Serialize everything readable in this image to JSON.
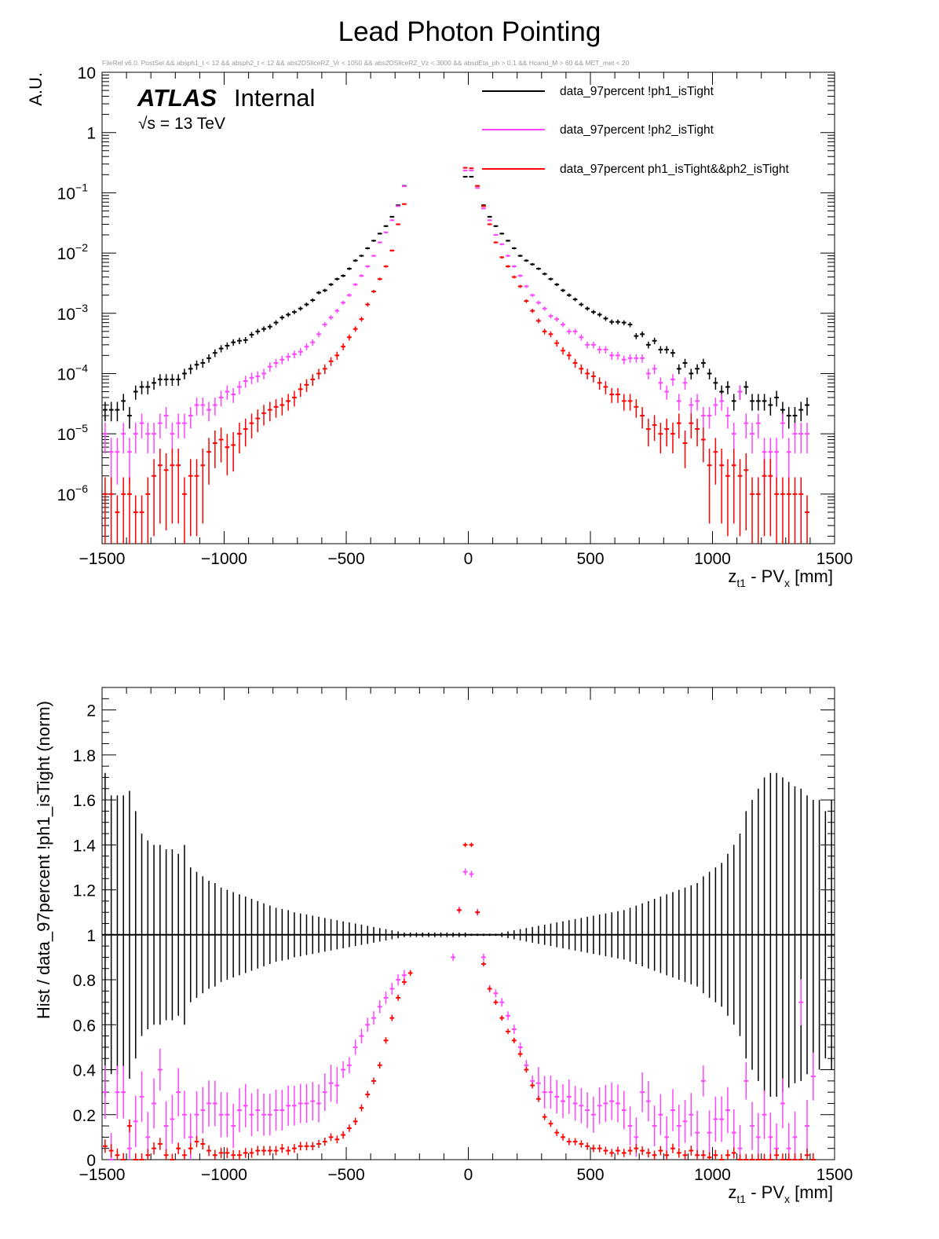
{
  "title": "Lead Photon Pointing",
  "selection_text": "FileRel v6.0. PostSel &&  absph1_t < 12 && absph2_t < 12 && abs2DSliceRZ_Vr < 1050 && abs2DSliceRZ_Vz < 3000 && absdEta_ph > 0.1 && Hcand_M > 60 && MET_met < 20",
  "atlas_label": "ATLAS",
  "atlas_status": "Internal",
  "energy_label": "√s = 13 TeV",
  "colors": {
    "series0": "#000000",
    "series1": "#ff44ff",
    "series2": "#ff0000"
  },
  "chart_data": [
    {
      "type": "scatter",
      "name": "top-panel",
      "title": "Lead Photon Pointing",
      "xlabel": "z_t1 - PV_x [mm]",
      "xlabel_main": "z",
      "xlabel_sub1": "t1",
      "xlabel_mid": " - PV",
      "xlabel_sub2": "x",
      "xlabel_tail": " [mm]",
      "ylabel": "A.U.",
      "yscale": "log",
      "xlim": [
        -1500,
        1500
      ],
      "ylim": [
        1.5e-07,
        10
      ],
      "grid": false,
      "legend": "top-right",
      "xticks": [
        {
          "v": -1500,
          "label": "−1500"
        },
        {
          "v": -1000,
          "label": "−1000"
        },
        {
          "v": -500,
          "label": "−500"
        },
        {
          "v": 0,
          "label": "0"
        },
        {
          "v": 500,
          "label": "500"
        },
        {
          "v": 1000,
          "label": "1000"
        },
        {
          "v": 1500,
          "label": "1500"
        }
      ],
      "yticks": [
        {
          "v": 10,
          "base": "10",
          "exp": ""
        },
        {
          "v": 1,
          "base": "1",
          "exp": ""
        },
        {
          "v": 0.1,
          "base": "10",
          "exp": "−1"
        },
        {
          "v": 0.01,
          "base": "10",
          "exp": "−2"
        },
        {
          "v": 0.001,
          "base": "10",
          "exp": "−3"
        },
        {
          "v": 0.0001,
          "base": "10",
          "exp": "−4"
        },
        {
          "v": 1e-05,
          "base": "10",
          "exp": "−5"
        },
        {
          "v": 1e-06,
          "base": "10",
          "exp": "−6"
        }
      ],
      "bin_edges": {
        "min": -1500,
        "width": 25,
        "count": 120
      },
      "series": [
        {
          "name": "data_97percent !ph1_isTight",
          "color": "#000000",
          "edge_values": [
            2.5e-05,
            2.5e-05,
            2.5e-05,
            3.5e-05,
            2e-05,
            5e-05,
            6e-05,
            6e-05,
            7e-05,
            8e-05,
            8e-05,
            8e-05,
            8e-05,
            0.0001,
            0.00012,
            0.00014,
            0.00015,
            0.00018,
            0.00022,
            0.00026,
            0.00029,
            0.00033,
            0.00035,
            0.00036,
            0.00044,
            0.0005,
            0.00055,
            0.0006,
            0.0007,
            0.00085,
            0.00095,
            0.00105,
            0.0012,
            0.0014,
            0.00165,
            0.0022,
            0.0024,
            0.003,
            0.0037,
            0.0042,
            0.0055,
            0.0075,
            0.009,
            0.012,
            0.016,
            0.021,
            0.028,
            0.04,
            0.062,
            0.13
          ],
          "center": [
            0.185,
            0.185
          ],
          "tail_pos": [
            0.13,
            0.062,
            0.04,
            0.028,
            0.021,
            0.016,
            0.012,
            0.009,
            0.0075,
            0.0065,
            0.0055,
            0.0045,
            0.0037,
            0.003,
            0.0024,
            0.002,
            0.0017,
            0.0014,
            0.0012,
            0.00105,
            0.00095,
            0.00082,
            0.00072,
            0.00072,
            0.0007,
            0.00065,
            0.00042,
            0.00045,
            0.0003,
            0.00035,
            0.00025,
            0.00025,
            0.00022,
            0.00012,
            0.00015,
            0.0001,
            0.00012,
            0.00015,
            0.0001,
            7e-05,
            5e-05,
            6e-05,
            3.5e-05,
            5e-05,
            6e-05,
            3.5e-05,
            3.5e-05,
            3.5e-05,
            3e-05,
            4e-05,
            2.5e-05,
            2e-05,
            2e-05,
            2.5e-05,
            3e-05
          ]
        },
        {
          "name": "data_97percent !ph2_isTight",
          "color": "#ff44ff",
          "edge_values": [
            1e-05,
            5e-06,
            5e-06,
            1e-05,
            5e-06,
            1e-05,
            1.5e-05,
            1e-05,
            1e-05,
            1.5e-05,
            2e-05,
            1e-05,
            1.5e-05,
            1.5e-05,
            2e-05,
            3e-05,
            3e-05,
            2.5e-05,
            3e-05,
            4e-05,
            5e-05,
            4.5e-05,
            6e-05,
            7.5e-05,
            8.5e-05,
            9e-05,
            0.0001,
            0.00013,
            0.00015,
            0.00017,
            0.00019,
            0.00021,
            0.00023,
            0.00028,
            0.00033,
            0.00045,
            0.00065,
            0.00085,
            0.0011,
            0.0015,
            0.002,
            0.003,
            0.0042,
            0.006,
            0.009,
            0.015,
            0.022,
            0.035,
            0.06,
            0.128
          ],
          "center": [
            0.235,
            0.235
          ],
          "tail_pos": [
            0.12,
            0.055,
            0.035,
            0.02,
            0.014,
            0.009,
            0.006,
            0.0042,
            0.0028,
            0.002,
            0.0015,
            0.0012,
            0.0009,
            0.0008,
            0.00065,
            0.0005,
            0.0005,
            0.0004,
            0.0003,
            0.0003,
            0.00025,
            0.00025,
            0.0002,
            0.0002,
            0.00017,
            0.00018,
            0.00018,
            0.00018,
            0.0001,
            0.00012,
            7e-05,
            5e-05,
            8e-05,
            3.5e-05,
            7e-05,
            3e-05,
            3.5e-05,
            2e-05,
            2e-05,
            3e-05,
            3.5e-05,
            2e-05,
            1e-05,
            5e-05,
            1.5e-05,
            1e-05,
            1.5e-05,
            5e-06,
            5e-06,
            5e-06,
            1.5e-05,
            5e-06,
            1e-05,
            1e-05,
            1e-05
          ]
        },
        {
          "name": "data_97percent ph1_isTight&&ph2_isTight",
          "color": "#ff0000",
          "edge_values": [
            1e-06,
            1e-06,
            5e-07,
            1e-06,
            1e-06,
            5e-07,
            5e-07,
            1e-06,
            2e-06,
            3e-06,
            2.5e-06,
            3e-06,
            3e-06,
            1e-06,
            2e-06,
            2e-06,
            3e-06,
            5e-06,
            7e-06,
            8e-06,
            6e-06,
            6.5e-06,
            1e-05,
            1.2e-05,
            1.5e-05,
            1.8e-05,
            2.2e-05,
            2.5e-05,
            2.8e-05,
            3e-05,
            3.5e-05,
            4e-05,
            5.5e-05,
            6.5e-05,
            8e-05,
            0.0001,
            0.00012,
            0.00016,
            0.0002,
            0.00028,
            0.0004,
            0.00055,
            0.0008,
            0.0014,
            0.0023,
            0.0037,
            0.006,
            0.011,
            0.03,
            0.065
          ],
          "center": [
            0.26,
            0.255
          ],
          "tail_pos": [
            0.13,
            0.06,
            0.03,
            0.015,
            0.0085,
            0.006,
            0.004,
            0.0028,
            0.0016,
            0.0011,
            0.00075,
            0.0005,
            0.00045,
            0.00032,
            0.00024,
            0.0002,
            0.00015,
            0.00012,
            0.0001,
            9e-05,
            7e-05,
            6e-05,
            4.5e-05,
            4.5e-05,
            3.5e-05,
            3.5e-05,
            2.8e-05,
            2e-05,
            1.2e-05,
            1.4e-05,
            1e-05,
            1.2e-05,
            1e-05,
            1.5e-05,
            7e-06,
            1.5e-05,
            1.2e-05,
            8e-06,
            3e-06,
            5e-06,
            3e-06,
            2e-06,
            3e-06,
            2e-06,
            2.5e-06,
            1e-06,
            1e-06,
            2e-06,
            2e-06,
            1e-06,
            1e-06,
            1e-06,
            1e-06,
            1e-06,
            5e-07
          ]
        }
      ]
    },
    {
      "type": "scatter",
      "name": "ratio-panel",
      "xlabel": "z_t1 - PV_x [mm]",
      "xlabel_main": "z",
      "xlabel_sub1": "t1",
      "xlabel_mid": " - PV",
      "xlabel_sub2": "x",
      "xlabel_tail": " [mm]",
      "ylabel": "Hist / data_97percent !ph1_isTight (norm)",
      "xlim": [
        -1500,
        1500
      ],
      "ylim": [
        0,
        2.1
      ],
      "grid": false,
      "xticks": [
        {
          "v": -1500,
          "label": "−1500"
        },
        {
          "v": -1000,
          "label": "−1000"
        },
        {
          "v": -500,
          "label": "−500"
        },
        {
          "v": 0,
          "label": "0"
        },
        {
          "v": 500,
          "label": "500"
        },
        {
          "v": 1000,
          "label": "1000"
        },
        {
          "v": 1500,
          "label": "1500"
        }
      ],
      "yticks": [
        {
          "v": 0,
          "label": "0"
        },
        {
          "v": 0.2,
          "label": "0.2"
        },
        {
          "v": 0.4,
          "label": "0.4"
        },
        {
          "v": 0.6,
          "label": "0.6"
        },
        {
          "v": 0.8,
          "label": "0.8"
        },
        {
          "v": 1,
          "label": "1"
        },
        {
          "v": 1.2,
          "label": "1.2"
        },
        {
          "v": 1.4,
          "label": "1.4"
        },
        {
          "v": 1.6,
          "label": "1.6"
        },
        {
          "v": 1.8,
          "label": "1.8"
        },
        {
          "v": 2,
          "label": "2"
        }
      ],
      "bin_edges": {
        "min": -1500,
        "width": 25,
        "count": 120
      },
      "reference_line": 1,
      "series": [
        {
          "name": "data_97percent !ph1_isTight",
          "color": "#000000",
          "value": 1,
          "error_edge": [
            0.72,
            0.62,
            0.62,
            0.62,
            0.64,
            0.55,
            0.45,
            0.42,
            0.4,
            0.4,
            0.38,
            0.38,
            0.36,
            0.4,
            0.3,
            0.28,
            0.26,
            0.24,
            0.23,
            0.21,
            0.2,
            0.19,
            0.18,
            0.17,
            0.16,
            0.15,
            0.14,
            0.13,
            0.12,
            0.115,
            0.11,
            0.1,
            0.095,
            0.09,
            0.085,
            0.08,
            0.075,
            0.07,
            0.065,
            0.06,
            0.055,
            0.05,
            0.045,
            0.04,
            0.035,
            0.03,
            0.025,
            0.02,
            0.015,
            0.01
          ],
          "error_tail": [
            0.01,
            0.015,
            0.02,
            0.025,
            0.03,
            0.035,
            0.04,
            0.045,
            0.05,
            0.055,
            0.06,
            0.065,
            0.07,
            0.075,
            0.08,
            0.085,
            0.09,
            0.095,
            0.1,
            0.105,
            0.11,
            0.12,
            0.13,
            0.14,
            0.15,
            0.16,
            0.17,
            0.18,
            0.19,
            0.2,
            0.21,
            0.22,
            0.23,
            0.26,
            0.28,
            0.3,
            0.32,
            0.36,
            0.4,
            0.45,
            0.55,
            0.6,
            0.65,
            0.7,
            0.72,
            0.72,
            0.7,
            0.68,
            0.66,
            0.65,
            0.62,
            0.6,
            0.6,
            0.55,
            0.6
          ]
        },
        {
          "name": "data_97percent !ph2_isTight",
          "color": "#ff44ff",
          "edge_values": [
            0.3,
            0.0,
            0.3,
            0.3,
            0.05,
            0.17,
            0.28,
            0.1,
            0.25,
            0.4,
            0.15,
            0.18,
            0.3,
            0.2,
            0.1,
            0.2,
            0.22,
            0.25,
            0.25,
            0.2,
            0.2,
            0.15,
            0.22,
            0.24,
            0.2,
            0.22,
            0.2,
            0.2,
            0.22,
            0.22,
            0.24,
            0.24,
            0.25,
            0.25,
            0.26,
            0.25,
            0.3,
            0.34,
            0.33,
            0.4,
            0.42,
            0.5,
            0.55,
            0.6,
            0.63,
            0.68,
            0.72,
            0.76,
            0.8,
            0.82
          ],
          "center": [
            0.9,
            1.11,
            1.28,
            1.27,
            1.1,
            0.9
          ],
          "tail_pos": [
            0.76,
            0.74,
            0.7,
            0.64,
            0.58,
            0.5,
            0.42,
            0.35,
            0.34,
            0.3,
            0.3,
            0.28,
            0.26,
            0.28,
            0.25,
            0.24,
            0.22,
            0.2,
            0.24,
            0.25,
            0.26,
            0.25,
            0.22,
            0.15,
            0.1,
            0.3,
            0.26,
            0.15,
            0.2,
            0.1,
            0.22,
            0.15,
            0.17,
            0.2,
            0.12,
            0.35,
            0.12,
            0.18,
            0.18,
            0.22,
            0.12,
            0.05,
            0.35,
            0.15,
            0.1,
            0.2,
            0.1,
            0.05,
            0.25,
            0.05,
            0.1,
            0.7,
            0.15,
            0.37
          ]
        },
        {
          "name": "data_97percent ph1_isTight&&ph2_isTight",
          "color": "#ff0000",
          "edge_values": [
            0.06,
            0.04,
            0.02,
            0.0,
            0.15,
            0.0,
            0.0,
            0.02,
            0.05,
            0.07,
            0.02,
            0.0,
            0.05,
            0.02,
            0.05,
            0.08,
            0.07,
            0.04,
            0.02,
            0.03,
            0.03,
            0.02,
            0.02,
            0.03,
            0.03,
            0.04,
            0.04,
            0.04,
            0.04,
            0.05,
            0.04,
            0.05,
            0.06,
            0.06,
            0.06,
            0.07,
            0.08,
            0.1,
            0.09,
            0.11,
            0.14,
            0.17,
            0.23,
            0.29,
            0.35,
            0.42,
            0.53,
            0.63,
            0.72,
            0.79,
            0.83
          ],
          "center": [
            1.11,
            1.4,
            1.4,
            1.1
          ],
          "tail_pos": [
            0.87,
            0.76,
            0.7,
            0.63,
            0.57,
            0.53,
            0.47,
            0.4,
            0.33,
            0.27,
            0.19,
            0.16,
            0.12,
            0.1,
            0.08,
            0.08,
            0.07,
            0.06,
            0.05,
            0.05,
            0.04,
            0.03,
            0.04,
            0.03,
            0.04,
            0.05,
            0.04,
            0.03,
            0.02,
            0.04,
            0.02,
            0.05,
            0.03,
            0.02,
            0.04,
            0.02,
            0.02,
            0.01,
            0.02,
            0.0,
            0.02,
            0.03,
            0.0,
            0.0,
            0.0,
            0.0,
            0.0,
            0.0,
            0.02,
            0.0,
            0.0,
            0.0,
            0.0,
            0.02,
            0.0
          ]
        }
      ]
    }
  ]
}
